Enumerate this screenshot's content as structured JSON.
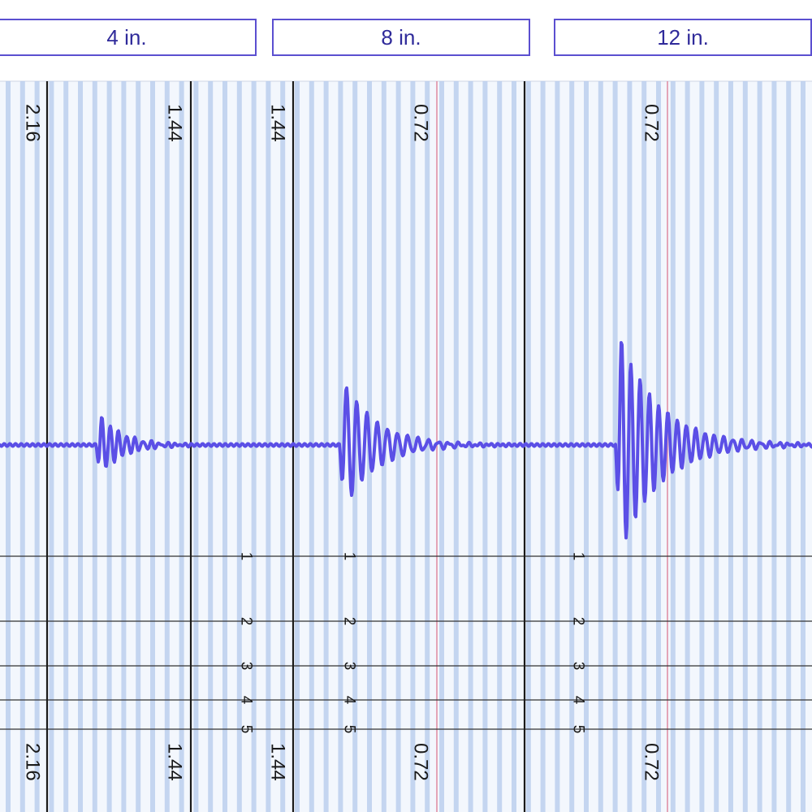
{
  "header": {
    "labels": [
      "4 in.",
      "8 in.",
      "12 in."
    ]
  },
  "chart_data": {
    "type": "line",
    "description_free": true,
    "panels": [
      {
        "top_tick_left": "2.16",
        "top_tick_right": "1.44",
        "bottom_tick_left": "2.16",
        "bottom_tick_right": "1.44",
        "burst_amplitude": 45
      },
      {
        "top_tick_left": "1.44",
        "top_tick_right": "0.72",
        "bottom_tick_left": "1.44",
        "bottom_tick_right": "0.72",
        "burst_amplitude": 90
      },
      {
        "top_tick_left": "0.72",
        "top_tick_right": "",
        "bottom_tick_left": "0.72",
        "bottom_tick_right": "",
        "burst_amplitude": 150
      }
    ],
    "scale_numbers": [
      "1",
      "2",
      "3",
      "4",
      "5"
    ],
    "colors": {
      "trace": "#5b4fe6",
      "grid": "#b9cdee",
      "background": "#f3f7fd",
      "divider": "#1a1a1a",
      "reference": "#e08aa0"
    }
  }
}
